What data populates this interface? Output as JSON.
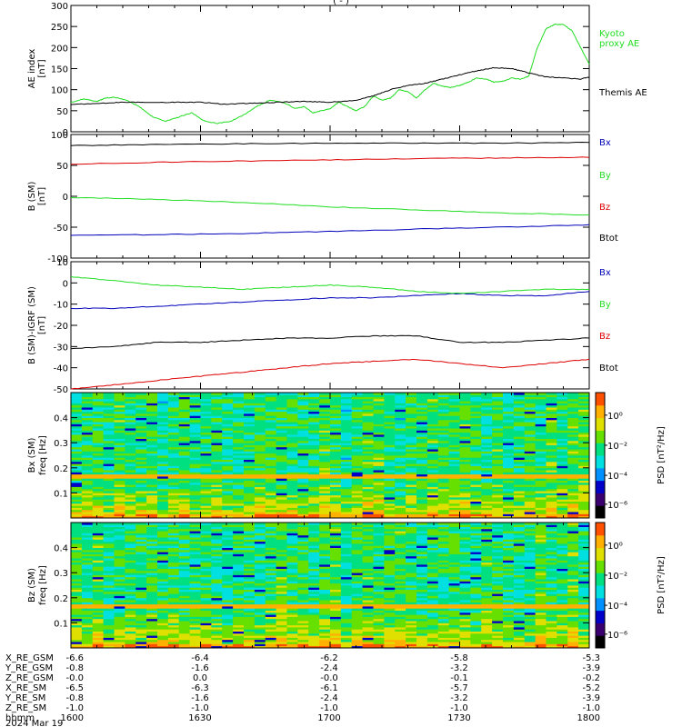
{
  "header": {
    "partial_title": "(     -   )"
  },
  "colors": {
    "black": "#000000",
    "green": "#22dd22",
    "red": "#dd0000",
    "blue": "#0000bb",
    "spectrogram_ramp": [
      "#000000",
      "#3a0070",
      "#0000c8",
      "#0090ff",
      "#00e0e0",
      "#00e080",
      "#66e000",
      "#e0e000",
      "#ffb000",
      "#ff5000",
      "#d00000"
    ]
  },
  "chart_data": [
    {
      "id": "ae-panel",
      "type": "line",
      "ylabel": "AE index",
      "yunit": "[nT]",
      "ylim": [
        0,
        300
      ],
      "yticks": [
        0,
        50,
        100,
        150,
        200,
        250,
        300
      ],
      "xlim": [
        0,
        120
      ],
      "series": [
        {
          "name": "Kyoto proxy AE",
          "legend_lines": [
            "Kyoto",
            "proxy AE"
          ],
          "color": "#22dd22",
          "x": [
            0,
            3,
            6,
            8,
            10,
            13,
            16,
            19,
            22,
            25,
            28,
            31,
            34,
            37,
            40,
            43,
            46,
            49,
            52,
            54,
            56,
            58,
            60,
            62,
            64,
            66,
            68,
            70,
            72,
            74,
            76,
            78,
            80,
            82,
            84,
            86,
            88,
            90,
            92,
            94,
            96,
            98,
            100,
            102,
            104,
            106,
            108,
            110,
            112,
            114,
            116,
            118,
            120
          ],
          "y": [
            70,
            78,
            72,
            80,
            82,
            75,
            58,
            35,
            25,
            35,
            45,
            25,
            20,
            25,
            40,
            60,
            75,
            70,
            55,
            60,
            45,
            50,
            55,
            70,
            60,
            50,
            60,
            85,
            75,
            80,
            100,
            95,
            80,
            100,
            115,
            108,
            105,
            110,
            118,
            128,
            125,
            118,
            120,
            128,
            125,
            132,
            200,
            245,
            255,
            255,
            240,
            200,
            160
          ]
        },
        {
          "name": "Themis AE",
          "legend_lines": [
            "Themis AE"
          ],
          "color": "#000000",
          "x": [
            0,
            6,
            12,
            18,
            24,
            30,
            36,
            42,
            48,
            54,
            60,
            66,
            70,
            74,
            78,
            82,
            86,
            90,
            94,
            98,
            102,
            106,
            110,
            114,
            118,
            120
          ],
          "y": [
            65,
            67,
            70,
            70,
            70,
            70,
            65,
            68,
            70,
            72,
            70,
            75,
            85,
            100,
            110,
            115,
            125,
            135,
            145,
            152,
            150,
            140,
            130,
            128,
            125,
            130
          ]
        }
      ]
    },
    {
      "id": "b-sm-panel",
      "type": "line",
      "ylabel": "B (SM)",
      "yunit": "[nT]",
      "ylim": [
        -100,
        100
      ],
      "yticks": [
        -100,
        -50,
        0,
        50,
        100
      ],
      "xlim": [
        0,
        120
      ],
      "series": [
        {
          "name": "Bx",
          "color": "#0000bb",
          "x": [
            0,
            20,
            40,
            60,
            80,
            100,
            120
          ],
          "y": [
            -63,
            -62,
            -60,
            -57,
            -53,
            -50,
            -46
          ]
        },
        {
          "name": "By",
          "color": "#22dd22",
          "x": [
            0,
            20,
            40,
            60,
            80,
            100,
            120
          ],
          "y": [
            -2,
            -5,
            -10,
            -17,
            -22,
            -27,
            -30
          ]
        },
        {
          "name": "Bz",
          "color": "#dd0000",
          "x": [
            0,
            20,
            40,
            60,
            80,
            100,
            120
          ],
          "y": [
            52,
            55,
            57,
            59,
            61,
            62,
            63
          ]
        },
        {
          "name": "Btot",
          "color": "#000000",
          "x": [
            0,
            20,
            40,
            60,
            80,
            100,
            120
          ],
          "y": [
            82,
            84,
            85,
            86,
            86,
            86,
            87
          ]
        }
      ]
    },
    {
      "id": "b-minus-igrf-panel",
      "type": "line",
      "ylabel": "B (SM)-IGRF (SM)",
      "yunit": "[nT]",
      "ylim": [
        -50,
        10
      ],
      "yticks": [
        -50,
        -40,
        -30,
        -20,
        -10,
        0,
        10
      ],
      "xlim": [
        0,
        120
      ],
      "series": [
        {
          "name": "Bx",
          "color": "#0000bb",
          "x": [
            0,
            10,
            20,
            30,
            40,
            50,
            60,
            70,
            80,
            90,
            100,
            110,
            120
          ],
          "y": [
            -12,
            -12,
            -11,
            -10,
            -9,
            -8,
            -7,
            -7,
            -6,
            -5,
            -6,
            -6,
            -4
          ]
        },
        {
          "name": "By",
          "color": "#22dd22",
          "x": [
            0,
            10,
            20,
            30,
            40,
            50,
            60,
            70,
            80,
            90,
            100,
            110,
            120
          ],
          "y": [
            3,
            1,
            -1,
            -2,
            -3,
            -2,
            -1,
            -2,
            -4,
            -5,
            -4,
            -3,
            -3
          ]
        },
        {
          "name": "Bz",
          "color": "#dd0000",
          "x": [
            0,
            10,
            20,
            30,
            40,
            50,
            60,
            70,
            80,
            90,
            100,
            110,
            120
          ],
          "y": [
            -50,
            -48,
            -46,
            -44,
            -42,
            -40,
            -38,
            -37,
            -36,
            -38,
            -40,
            -38,
            -36
          ]
        },
        {
          "name": "Btot",
          "color": "#000000",
          "x": [
            0,
            10,
            20,
            30,
            40,
            50,
            60,
            70,
            80,
            90,
            100,
            110,
            120
          ],
          "y": [
            -31,
            -30,
            -28,
            -28,
            -27,
            -26,
            -26,
            -25,
            -25,
            -28,
            -28,
            -27,
            -26
          ]
        }
      ]
    },
    {
      "id": "bx-spectrogram",
      "type": "heatmap",
      "ylabel_lines": [
        "Bx (SM)",
        "freq [Hz]"
      ],
      "ylim": [
        0,
        0.5
      ],
      "yticks": [
        0.1,
        0.2,
        0.3,
        0.4
      ],
      "colorbar": {
        "label": "PSD [nT²/Hz]",
        "ticks": [
          "10⁰",
          "10⁻²",
          "10⁻⁴",
          "10⁻⁶"
        ]
      },
      "resolution": {
        "time_bins": 48,
        "freq_bins": 60
      },
      "features": {
        "band_hz": 0.165
      }
    },
    {
      "id": "bz-spectrogram",
      "type": "heatmap",
      "ylabel_lines": [
        "Bz (SM)",
        "freq [Hz]"
      ],
      "ylim": [
        0,
        0.5
      ],
      "yticks": [
        0.1,
        0.2,
        0.3,
        0.4
      ],
      "colorbar": {
        "label": "PSD [nT²/Hz]",
        "ticks": [
          "10⁰",
          "10⁻²",
          "10⁻⁴",
          "10⁻⁶"
        ]
      },
      "resolution": {
        "time_bins": 48,
        "freq_bins": 60
      },
      "features": {
        "band_hz": 0.165
      }
    }
  ],
  "ephemeris": {
    "rows": [
      {
        "label": "X_RE_GSM",
        "values": [
          "-6.6",
          "-6.4",
          "-6.2",
          "-5.8",
          "-5.3"
        ]
      },
      {
        "label": "Y_RE_GSM",
        "values": [
          "-0.8",
          "-1.6",
          "-2.4",
          "-3.2",
          "-3.9"
        ]
      },
      {
        "label": "Z_RE_GSM",
        "values": [
          "-0.0",
          "0.0",
          "-0.0",
          "-0.1",
          "-0.2"
        ]
      },
      {
        "label": "X_RE_SM",
        "values": [
          "-6.5",
          "-6.3",
          "-6.1",
          "-5.7",
          "-5.2"
        ]
      },
      {
        "label": "Y_RE_SM",
        "values": [
          "-0.8",
          "-1.6",
          "-2.4",
          "-3.2",
          "-3.9"
        ]
      },
      {
        "label": "Z_RE_SM",
        "values": [
          "-1.0",
          "-1.0",
          "-1.0",
          "-1.0",
          "-1.0"
        ]
      },
      {
        "label": "hhmm",
        "values": [
          "1600",
          "1630",
          "1700",
          "1730",
          "1800"
        ]
      }
    ],
    "date": "2024 Mar 19"
  }
}
